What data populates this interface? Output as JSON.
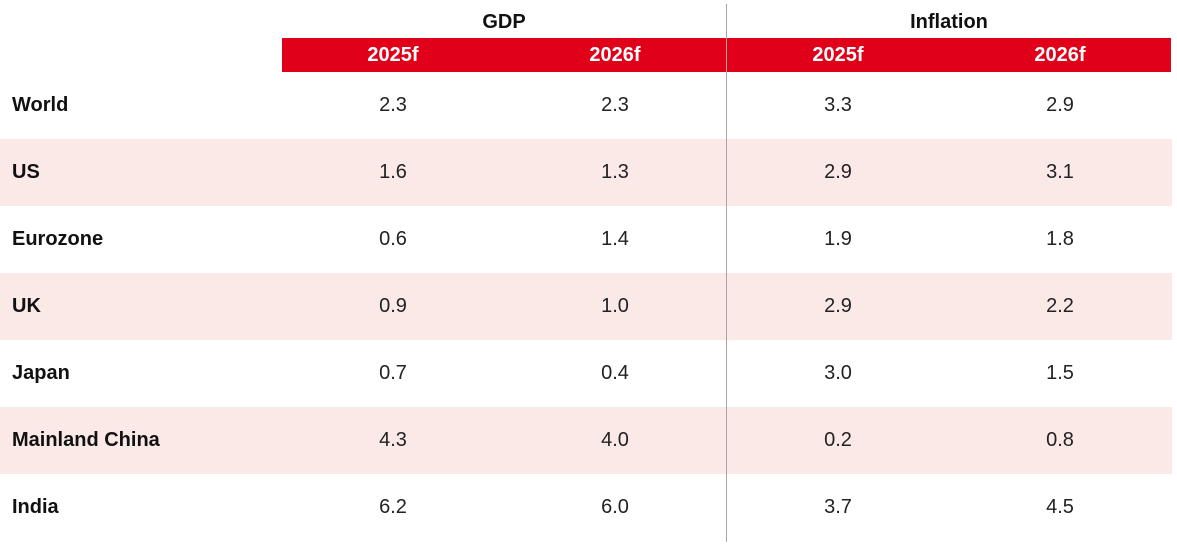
{
  "table": {
    "groups": [
      "GDP",
      "Inflation"
    ],
    "years": [
      "2025f",
      "2026f",
      "2025f",
      "2026f"
    ],
    "rows": [
      {
        "label": "World",
        "values": [
          "2.3",
          "2.3",
          "3.3",
          "2.9"
        ]
      },
      {
        "label": "US",
        "values": [
          "1.6",
          "1.3",
          "2.9",
          "3.1"
        ]
      },
      {
        "label": "Eurozone",
        "values": [
          "0.6",
          "1.4",
          "1.9",
          "1.8"
        ]
      },
      {
        "label": "UK",
        "values": [
          "0.9",
          "1.0",
          "2.9",
          "2.2"
        ]
      },
      {
        "label": "Japan",
        "values": [
          "0.7",
          "0.4",
          "3.0",
          "1.5"
        ]
      },
      {
        "label": "Mainland China",
        "values": [
          "4.3",
          "4.0",
          "0.2",
          "0.8"
        ]
      },
      {
        "label": "India",
        "values": [
          "6.2",
          "6.0",
          "3.7",
          "4.5"
        ]
      }
    ]
  },
  "colors": {
    "header_red": "#e1001a",
    "row_shade": "#fbe9e7",
    "divider": "#a6a6a6"
  }
}
